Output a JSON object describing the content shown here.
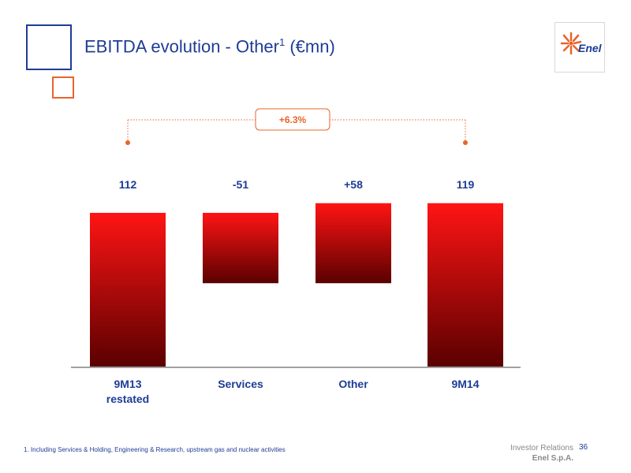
{
  "header": {
    "title": "EBITDA evolution - Other",
    "title_sup": "1",
    "title_unit": "(€mn)"
  },
  "logo": {
    "text": "Enel"
  },
  "colors": {
    "brand_blue": "#1e3c96",
    "accent_orange": "#e8642b",
    "bar_top": "#ff1414",
    "bar_bottom": "#5a0000",
    "axis": "#a0a0a0",
    "footer_gray": "#888888"
  },
  "chart_data": {
    "type": "bar",
    "subtype": "waterfall",
    "categories": [
      "9M13 restated",
      "Services",
      "Other",
      "9M14"
    ],
    "category_lines": [
      [
        "9M13",
        "restated"
      ],
      [
        "Services"
      ],
      [
        "Other"
      ],
      [
        "9M14"
      ]
    ],
    "labels": [
      "112",
      "-51",
      "+58",
      "119"
    ],
    "values": [
      112,
      -51,
      58,
      119
    ],
    "bar_kind": [
      "total",
      "delta",
      "delta",
      "total"
    ],
    "annotation": "+6.3%"
  },
  "footer": {
    "footnote": "1. Including Services & Holding, Engineering & Research, upstream gas and nuclear activities",
    "ir_line1": "Investor Relations",
    "ir_line2": "Enel S.p.A.",
    "page_number": "36"
  }
}
